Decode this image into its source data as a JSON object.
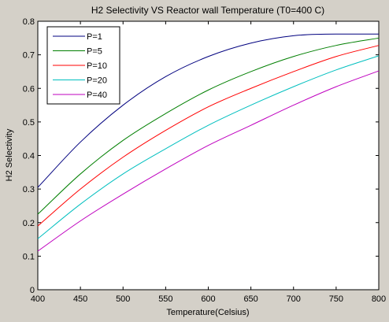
{
  "chart_data": {
    "type": "line",
    "title": "H2 Selectivity VS Reactor wall Temperature (T0=400 C)",
    "xlabel": "Temperature(Celsius)",
    "ylabel": "H2 Selectivity",
    "xlim": [
      400,
      800
    ],
    "ylim": [
      0,
      0.8
    ],
    "xticks": [
      400,
      450,
      500,
      550,
      600,
      650,
      700,
      750,
      800
    ],
    "yticks": [
      0,
      0.1,
      0.2,
      0.3,
      0.4,
      0.5,
      0.6,
      0.7,
      0.8
    ],
    "ytick_labels": [
      "0",
      "0.1",
      "0.2",
      "0.3",
      "0.4",
      "0.5",
      "0.6",
      "0.7",
      "0.8"
    ],
    "grid": false,
    "legend_position": "top-left",
    "x": [
      400,
      450,
      500,
      550,
      600,
      650,
      700,
      750,
      800
    ],
    "series": [
      {
        "name": "P=1",
        "color": "#00007f",
        "values": [
          0.305,
          0.44,
          0.55,
          0.635,
          0.695,
          0.735,
          0.757,
          0.762,
          0.762
        ]
      },
      {
        "name": "P=5",
        "color": "#007f00",
        "values": [
          0.225,
          0.345,
          0.445,
          0.525,
          0.595,
          0.65,
          0.695,
          0.728,
          0.75
        ]
      },
      {
        "name": "P=10",
        "color": "#ff0000",
        "values": [
          0.19,
          0.3,
          0.395,
          0.475,
          0.545,
          0.6,
          0.65,
          0.695,
          0.728
        ]
      },
      {
        "name": "P=20",
        "color": "#00bfbf",
        "values": [
          0.152,
          0.255,
          0.345,
          0.42,
          0.49,
          0.55,
          0.605,
          0.655,
          0.697
        ]
      },
      {
        "name": "P=40",
        "color": "#bf00bf",
        "values": [
          0.115,
          0.205,
          0.285,
          0.36,
          0.43,
          0.49,
          0.55,
          0.605,
          0.652
        ]
      }
    ]
  }
}
